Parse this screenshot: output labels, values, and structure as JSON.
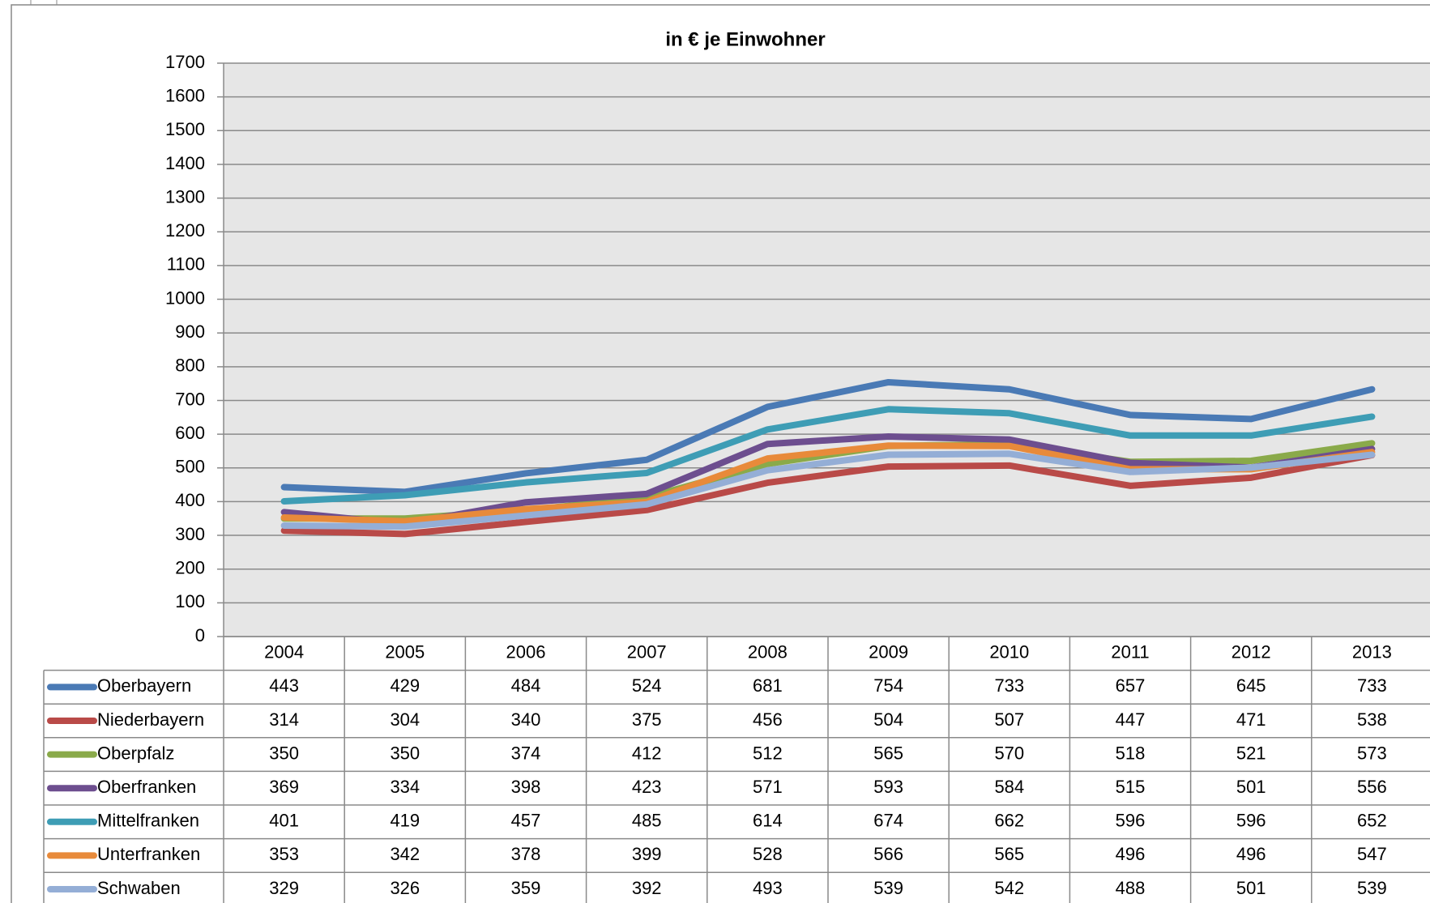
{
  "chart_data": {
    "type": "line",
    "title": "in € je Einwohner",
    "categories": [
      "2004",
      "2005",
      "2006",
      "2007",
      "2008",
      "2009",
      "2010",
      "2011",
      "2012",
      "2013"
    ],
    "ylim": [
      0,
      1700
    ],
    "yticks": [
      0,
      100,
      200,
      300,
      400,
      500,
      600,
      700,
      800,
      900,
      1000,
      1100,
      1200,
      1300,
      1400,
      1500,
      1600,
      1700
    ],
    "grid": true,
    "series": [
      {
        "name": "Oberbayern",
        "color": "#4a7ab5",
        "values": [
          443,
          429,
          484,
          524,
          681,
          754,
          733,
          657,
          645,
          733
        ]
      },
      {
        "name": "Niederbayern",
        "color": "#b94a48",
        "values": [
          314,
          304,
          340,
          375,
          456,
          504,
          507,
          447,
          471,
          538
        ]
      },
      {
        "name": "Oberpfalz",
        "color": "#8aaa4a",
        "values": [
          350,
          350,
          374,
          412,
          512,
          565,
          570,
          518,
          521,
          573
        ]
      },
      {
        "name": "Oberfranken",
        "color": "#6d4e8f",
        "values": [
          369,
          334,
          398,
          423,
          571,
          593,
          584,
          515,
          501,
          556
        ]
      },
      {
        "name": "Mittelfranken",
        "color": "#3e9db5",
        "values": [
          401,
          419,
          457,
          485,
          614,
          674,
          662,
          596,
          596,
          652
        ]
      },
      {
        "name": "Unterfranken",
        "color": "#e88a3a",
        "values": [
          353,
          342,
          378,
          399,
          528,
          566,
          565,
          496,
          496,
          547
        ]
      },
      {
        "name": "Schwaben",
        "color": "#94aed6",
        "values": [
          329,
          326,
          359,
          392,
          493,
          539,
          542,
          488,
          501,
          539
        ]
      }
    ]
  }
}
